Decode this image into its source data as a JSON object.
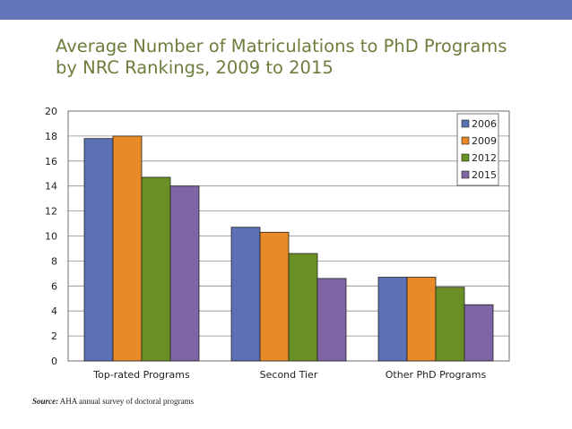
{
  "slide": {
    "title_line1": "Average Number of Matriculations to PhD Programs",
    "title_line2": "by NRC Rankings, 2009 to 2015",
    "source_label": "Source:",
    "source_text": "AHA annual survey of doctoral programs",
    "accent_color": "#6375b8",
    "title_color": "#6d7e3d"
  },
  "chart_data": {
    "type": "bar",
    "title": "Average Number of Matriculations to PhD Programs by NRC Rankings, 2009 to 2015",
    "xlabel": "",
    "ylabel": "",
    "ylim": [
      0,
      20
    ],
    "yticks": [
      0,
      2,
      4,
      6,
      8,
      10,
      12,
      14,
      16,
      18,
      20
    ],
    "grid": true,
    "legend_position": "top-right",
    "categories": [
      "Top-rated Programs",
      "Second Tier",
      "Other PhD Programs"
    ],
    "series": [
      {
        "name": "2006",
        "color": "#5b70b5",
        "values": [
          17.8,
          10.7,
          6.7
        ]
      },
      {
        "name": "2009",
        "color": "#e88a27",
        "values": [
          18.0,
          10.3,
          6.7
        ]
      },
      {
        "name": "2012",
        "color": "#6a8f25",
        "values": [
          14.7,
          8.6,
          5.9
        ]
      },
      {
        "name": "2015",
        "color": "#7f65a4",
        "values": [
          14.0,
          6.6,
          4.5
        ]
      }
    ]
  }
}
